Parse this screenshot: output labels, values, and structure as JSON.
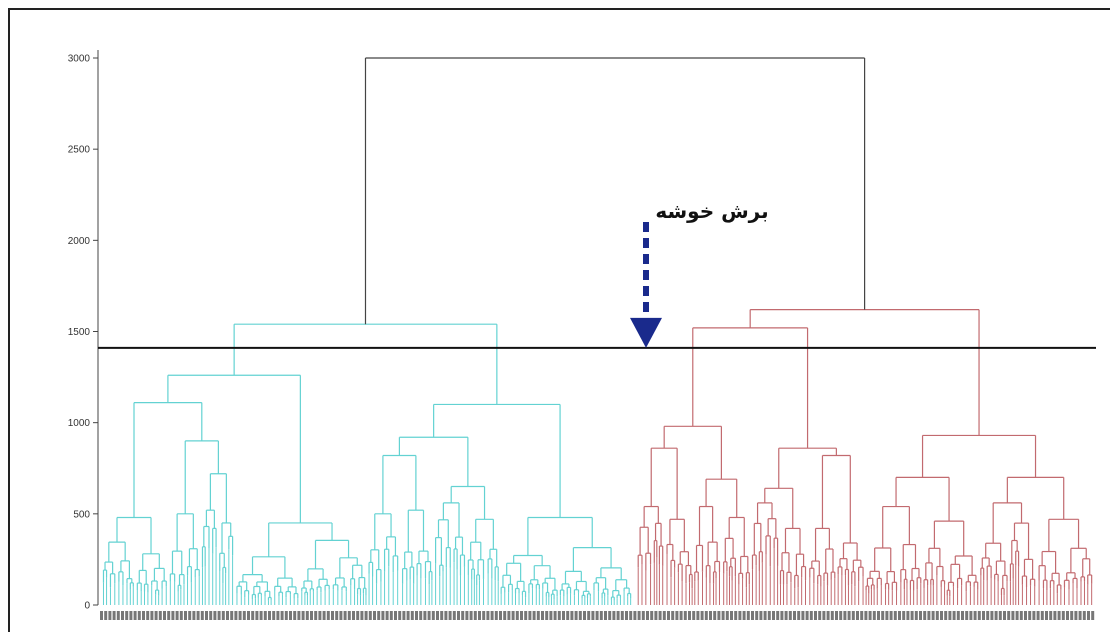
{
  "chart_data": {
    "type": "dendrogram",
    "ylim": [
      0,
      3000
    ],
    "yticks": [
      0,
      500,
      1000,
      1500,
      2000,
      2500,
      3000
    ],
    "root_height": 3000,
    "cut_height": 1410,
    "annotation": "برش خوشه",
    "clusters": [
      {
        "color": "#63d2d2",
        "merge_height": 1540,
        "subclusters": [
          {
            "merge_height": 1260,
            "children": [
              {
                "merge_height": 1110,
                "children": [
                  {
                    "merge_height": 480
                  },
                  {
                    "merge_height": 900,
                    "children": [
                      {
                        "merge_height": 500
                      },
                      {
                        "merge_height": 720,
                        "children": [
                          {
                            "merge_height": 520
                          },
                          {
                            "merge_height": 450
                          }
                        ]
                      }
                    ]
                  }
                ]
              },
              {
                "merge_height": 450
              }
            ]
          },
          {
            "merge_height": 1100,
            "children": [
              {
                "merge_height": 920,
                "children": [
                  {
                    "merge_height": 820,
                    "children": [
                      {
                        "merge_height": 500
                      },
                      {
                        "merge_height": 520
                      }
                    ]
                  },
                  {
                    "merge_height": 650,
                    "children": [
                      {
                        "merge_height": 560
                      },
                      {
                        "merge_height": 470
                      }
                    ]
                  }
                ]
              },
              {
                "merge_height": 480
              }
            ]
          }
        ]
      },
      {
        "color": "#c26a6f",
        "merge_height": 1620,
        "subclusters": [
          {
            "merge_height": 1520,
            "children": [
              {
                "merge_height": 980,
                "children": [
                  {
                    "merge_height": 860,
                    "children": [
                      {
                        "merge_height": 540
                      },
                      {
                        "merge_height": 470
                      }
                    ]
                  },
                  {
                    "merge_height": 690,
                    "children": [
                      {
                        "merge_height": 540
                      },
                      {
                        "merge_height": 480
                      }
                    ]
                  }
                ]
              },
              {
                "merge_height": 860,
                "children": [
                  {
                    "merge_height": 640,
                    "children": [
                      {
                        "merge_height": 560
                      },
                      {
                        "merge_height": 420
                      }
                    ]
                  },
                  {
                    "merge_height": 820,
                    "children": [
                      {
                        "merge_height": 420
                      },
                      {
                        "merge_height": 340
                      }
                    ]
                  }
                ]
              }
            ]
          },
          {
            "merge_height": 930,
            "children": [
              {
                "merge_height": 700,
                "children": [
                  {
                    "merge_height": 540
                  },
                  {
                    "merge_height": 460
                  }
                ]
              },
              {
                "merge_height": 700,
                "children": [
                  {
                    "merge_height": 560
                  },
                  {
                    "merge_height": 470
                  }
                ]
              }
            ]
          }
        ]
      }
    ]
  }
}
